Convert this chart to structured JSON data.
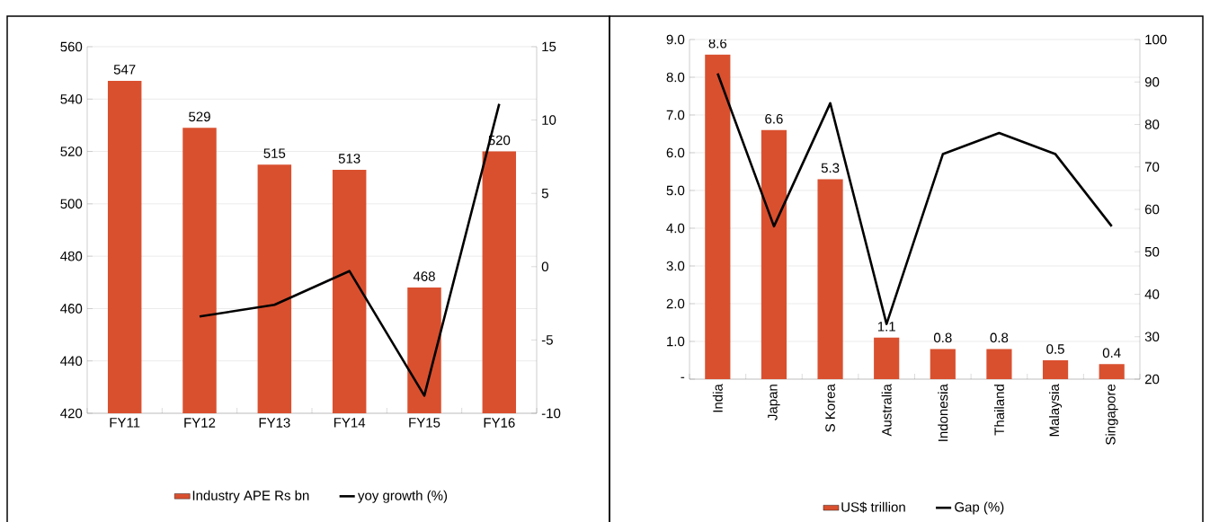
{
  "chart_data": [
    {
      "type": "bar",
      "categories": [
        "FY11",
        "FY12",
        "FY13",
        "FY14",
        "FY15",
        "FY16"
      ],
      "ylim": [
        420,
        560
      ],
      "yticks": [
        420,
        440,
        460,
        480,
        500,
        520,
        540,
        560
      ],
      "y2lim": [
        -10,
        15
      ],
      "y2ticks": [
        -10,
        -5,
        0,
        5,
        10,
        15
      ],
      "grid": "y",
      "legend": "bottom",
      "series": [
        {
          "name": "Industry APE Rs bn",
          "color": "#d9502f",
          "values": [
            547,
            529,
            515,
            513,
            468,
            520
          ],
          "value_labels": [
            "547",
            "529",
            "515",
            "513",
            "468",
            "520"
          ]
        },
        {
          "name": "yoy growth (%)",
          "type": "line",
          "axis": "y2",
          "color": "#000000",
          "values": [
            null,
            -3.4,
            -2.6,
            -0.3,
            -8.8,
            11.1
          ]
        }
      ]
    },
    {
      "type": "bar",
      "categories": [
        "India",
        "Japan",
        "S Korea",
        "Australia",
        "Indonesia",
        "Thailand",
        "Malaysia",
        "Singapore"
      ],
      "ylim": [
        0,
        9
      ],
      "yticks": [
        {
          "value": 0,
          "label": "-"
        },
        {
          "value": 1,
          "label": "1.0"
        },
        {
          "value": 2,
          "label": "2.0"
        },
        {
          "value": 3,
          "label": "3.0"
        },
        {
          "value": 4,
          "label": "4.0"
        },
        {
          "value": 5,
          "label": "5.0"
        },
        {
          "value": 6,
          "label": "6.0"
        },
        {
          "value": 7,
          "label": "7.0"
        },
        {
          "value": 8,
          "label": "8.0"
        },
        {
          "value": 9,
          "label": "9.0"
        }
      ],
      "y2lim": [
        20,
        100
      ],
      "y2ticks": [
        20,
        30,
        40,
        50,
        60,
        70,
        80,
        90,
        100
      ],
      "grid": "y",
      "legend": "bottom",
      "series": [
        {
          "name": "US$ trillion",
          "color": "#d9502f",
          "values": [
            8.6,
            6.6,
            5.3,
            1.1,
            0.8,
            0.8,
            0.5,
            0.4
          ],
          "value_labels": [
            "8.6",
            "6.6",
            "5.3",
            "1.1",
            "0.8",
            "0.8",
            "0.5",
            "0.4"
          ]
        },
        {
          "name": "Gap (%)",
          "type": "line",
          "axis": "y2",
          "color": "#000000",
          "values": [
            92,
            56,
            85,
            33,
            73,
            78,
            73,
            56
          ]
        }
      ]
    }
  ]
}
